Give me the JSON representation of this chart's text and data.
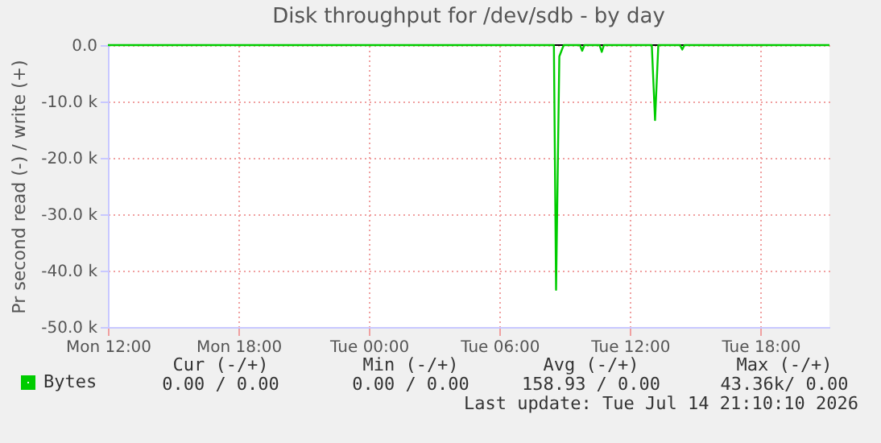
{
  "chart_data": {
    "type": "line",
    "title": "Disk throughput for /dev/sdb - by day",
    "ylabel": "Pr second read (-) / write (+)",
    "x": [
      "2026-07-13T12:00",
      "2026-07-14T08:30",
      "2026-07-14T08:36",
      "2026-07-14T08:45",
      "2026-07-14T08:57",
      "2026-07-14T09:42",
      "2026-07-14T09:48",
      "2026-07-14T09:54",
      "2026-07-14T10:36",
      "2026-07-14T10:42",
      "2026-07-14T10:48",
      "2026-07-14T13:00",
      "2026-07-14T13:09",
      "2026-07-14T13:18",
      "2026-07-14T14:18",
      "2026-07-14T14:24",
      "2026-07-14T14:30",
      "2026-07-14T21:10"
    ],
    "series": [
      {
        "name": "Bytes",
        "color": "#00cc00",
        "values": [
          0,
          0,
          -43400,
          -2000,
          0,
          0,
          -1000,
          0,
          0,
          -1200,
          0,
          0,
          -13300,
          0,
          0,
          -800,
          0,
          0
        ]
      }
    ],
    "xlim": [
      "2026-07-13T12:00",
      "2026-07-14T21:10"
    ],
    "xticks": [
      {
        "value": "2026-07-13T12:00",
        "label": "Mon 12:00"
      },
      {
        "value": "2026-07-13T18:00",
        "label": "Mon 18:00"
      },
      {
        "value": "2026-07-14T00:00",
        "label": "Tue 00:00"
      },
      {
        "value": "2026-07-14T06:00",
        "label": "Tue 06:00"
      },
      {
        "value": "2026-07-14T12:00",
        "label": "Tue 12:00"
      },
      {
        "value": "2026-07-14T18:00",
        "label": "Tue 18:00"
      }
    ],
    "ylim": [
      -50000,
      0
    ],
    "yticks": [
      {
        "value": 0,
        "label": "0.0"
      },
      {
        "value": -10000,
        "label": "-10.0 k"
      },
      {
        "value": -20000,
        "label": "-20.0 k"
      },
      {
        "value": -30000,
        "label": "-30.0 k"
      },
      {
        "value": -40000,
        "label": "-40.0 k"
      },
      {
        "value": -50000,
        "label": "-50.0 k"
      }
    ],
    "ref_lines": [
      {
        "axis": "y",
        "value": 0,
        "color": "#000000"
      }
    ],
    "grid": true,
    "legend": "bottom",
    "marker": "none",
    "line_style": "solid",
    "annotations": [
      "Cur (-/+)",
      "Min (-/+)",
      "Avg (-/+)",
      "Max (-/+)",
      "0.00 / 0.00",
      "0.00 / 0.00",
      "158.93 / 0.00",
      "43.36k/ 0.00",
      "Last update: Tue Jul 14 21:10:10 2026"
    ]
  }
}
